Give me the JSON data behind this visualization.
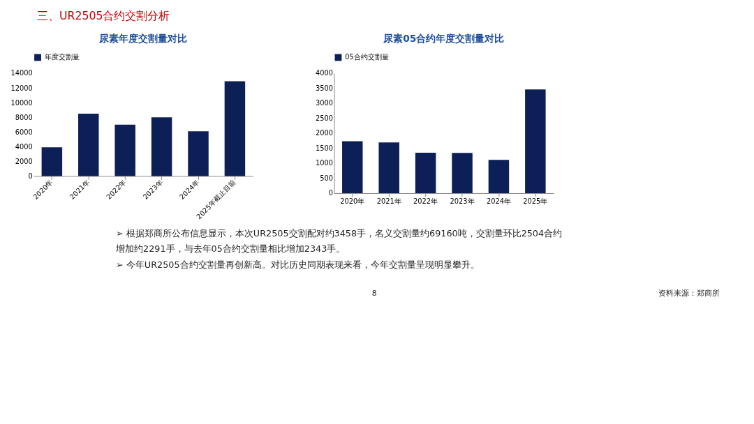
{
  "chart_data": [
    {
      "type": "bar",
      "title": "尿素年度交割量对比",
      "categories": [
        "2020年",
        "2021年",
        "2022年",
        "2023年",
        "2024年",
        "2025年截止目前"
      ],
      "series": [
        {
          "name": "年度交割量",
          "color": "#0c1f56",
          "values": [
            3900,
            8500,
            7000,
            8000,
            6100,
            12900
          ]
        }
      ],
      "ylim": [
        0,
        14000
      ],
      "yticks": [
        0,
        2000,
        4000,
        6000,
        8000,
        10000,
        12000,
        14000
      ],
      "grid": false,
      "legend": "top",
      "annotations": [
        "三、UR2505合约交割分析",
        "➢ 根据郑商所公布信息显示，本次UR2505交割配对约3458手，名义交割量约69160吨，交割量环比2504合约增加约2291手，与去年05合约交割量相比增加2343手。",
        "➢ 今年UR2505合约交割量再创新高。对比历史同期表现来看，今年交割量呈现明显攀升。",
        "8",
        "资料来源：郑商所"
      ]
    },
    {
      "type": "bar",
      "title": "尿素05合约年度交割量对比",
      "categories": [
        "2020年",
        "2021年",
        "2022年",
        "2023年",
        "2024年",
        "2025年"
      ],
      "series": [
        {
          "name": "05合约交割量",
          "color": "#0c1f56",
          "values": [
            1730,
            1690,
            1350,
            1340,
            1110,
            3460
          ]
        }
      ],
      "ylim": [
        0,
        4000
      ],
      "yticks": [
        0,
        500,
        1000,
        1500,
        2000,
        2500,
        3000,
        3500,
        4000
      ],
      "grid": false,
      "legend": "top"
    }
  ]
}
